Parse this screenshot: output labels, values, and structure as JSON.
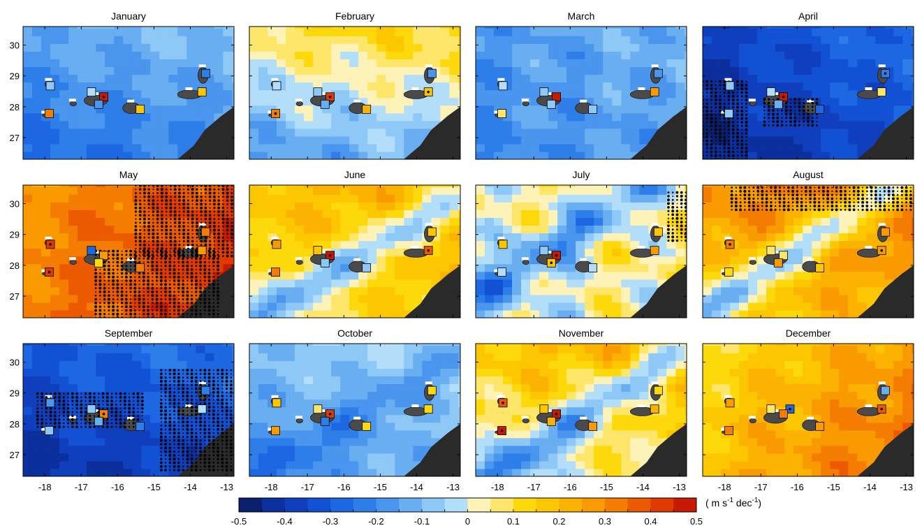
{
  "figure": {
    "panel_titles": [
      "January",
      "February",
      "March",
      "April",
      "May",
      "June",
      "July",
      "August",
      "September",
      "October",
      "November",
      "December"
    ],
    "colorbar_unit_main": "( m s",
    "colorbar_unit_sup1": "-1",
    "colorbar_unit_mid": " dec",
    "colorbar_unit_sup2": "-1",
    "colorbar_unit_end": ")"
  },
  "chart_data": {
    "type": "heatmap",
    "title": "",
    "xlim": [
      -18.6,
      -12.8
    ],
    "ylim": [
      26.3,
      30.6
    ],
    "x_ticks": [
      -18,
      -17,
      -16,
      -15,
      -14,
      -13
    ],
    "x_tick_labels": [
      "-18",
      "-17",
      "-16",
      "-15",
      "-14",
      "-13"
    ],
    "y_ticks": [
      27,
      28,
      29,
      30
    ],
    "y_tick_labels": [
      "27",
      "28",
      "29",
      "30"
    ],
    "colorbar": {
      "range": [
        -0.5,
        0.5
      ],
      "step": 0.05,
      "ticks": [
        -0.5,
        -0.4,
        -0.3,
        -0.2,
        -0.1,
        0,
        0.1,
        0.2,
        0.3,
        0.4,
        0.5
      ],
      "tick_labels": [
        "-0.5",
        "-0.4",
        "-0.3",
        "-0.2",
        "-0.1",
        "0",
        "0.1",
        "0.2",
        "0.3",
        "0.4",
        "0.5"
      ],
      "colors": [
        "#08206e",
        "#0b2f9c",
        "#0f3fbc",
        "#1351d4",
        "#1d67e3",
        "#2e7ee9",
        "#4a95ee",
        "#6aaef2",
        "#8dc8f6",
        "#b3def9",
        "#fdf3b8",
        "#fde66a",
        "#fdd80a",
        "#fcc700",
        "#fbb200",
        "#f89a00",
        "#f47c00",
        "#ec5a00",
        "#e03a00",
        "#c81a00"
      ]
    },
    "grid_cell_deg": 0.25,
    "months": [
      {
        "name": "January",
        "field": {
          "base": -0.18,
          "grad": [
            0.01,
            0.03
          ],
          "wave": 0.05,
          "bands": []
        },
        "stations": [
          {
            "x": -17.85,
            "y": 28.68,
            "v": -0.1
          },
          {
            "x": -17.88,
            "y": 27.78,
            "v": 0.3
          },
          {
            "x": -16.72,
            "y": 28.48,
            "v": -0.05
          },
          {
            "x": -16.38,
            "y": 28.32,
            "v": 0.45,
            "sig": true
          },
          {
            "x": -16.52,
            "y": 28.08,
            "v": -0.2
          },
          {
            "x": -15.38,
            "y": 27.92,
            "v": 0.15
          },
          {
            "x": -13.58,
            "y": 29.08,
            "v": -0.25
          },
          {
            "x": -13.68,
            "y": 28.48,
            "v": 0.18
          }
        ],
        "stipple": []
      },
      {
        "name": "February",
        "field": {
          "base": -0.02,
          "grad": [
            0.01,
            0.06
          ],
          "wave": 0.07,
          "bands": []
        },
        "stations": [
          {
            "x": -17.85,
            "y": 28.68,
            "v": -0.05
          },
          {
            "x": -17.88,
            "y": 27.78,
            "v": 0.3,
            "sig": true
          },
          {
            "x": -16.72,
            "y": 28.48,
            "v": -0.1
          },
          {
            "x": -16.38,
            "y": 28.32,
            "v": 0.42,
            "sig": true
          },
          {
            "x": -16.52,
            "y": 28.08,
            "v": -0.12
          },
          {
            "x": -15.38,
            "y": 27.92,
            "v": 0.2
          },
          {
            "x": -13.58,
            "y": 29.08,
            "v": -0.2
          },
          {
            "x": -13.68,
            "y": 28.48,
            "v": 0.15,
            "sig": true
          }
        ],
        "stipple": []
      },
      {
        "name": "March",
        "field": {
          "base": -0.16,
          "grad": [
            0.01,
            0.01
          ],
          "wave": 0.06,
          "bands": []
        },
        "stations": [
          {
            "x": -17.85,
            "y": 28.68,
            "v": -0.05
          },
          {
            "x": -17.88,
            "y": 27.78,
            "v": 0.08
          },
          {
            "x": -16.72,
            "y": 28.48,
            "v": -0.08
          },
          {
            "x": -16.38,
            "y": 28.32,
            "v": 0.45
          },
          {
            "x": -16.52,
            "y": 28.08,
            "v": -0.1
          },
          {
            "x": -15.38,
            "y": 27.92,
            "v": -0.06
          },
          {
            "x": -13.58,
            "y": 29.08,
            "v": -0.18
          },
          {
            "x": -13.68,
            "y": 28.48,
            "v": 0.28
          }
        ],
        "stipple": []
      },
      {
        "name": "April",
        "field": {
          "base": -0.36,
          "grad": [
            0.02,
            0.02
          ],
          "wave": 0.05,
          "bands": []
        },
        "stations": [
          {
            "x": -17.85,
            "y": 28.68,
            "v": -0.08
          },
          {
            "x": -17.88,
            "y": 27.78,
            "v": -0.1
          },
          {
            "x": -16.72,
            "y": 28.48,
            "v": -0.05
          },
          {
            "x": -16.38,
            "y": 28.32,
            "v": 0.45,
            "sig": true
          },
          {
            "x": -16.52,
            "y": 28.08,
            "v": -0.15
          },
          {
            "x": -15.38,
            "y": 27.92,
            "v": -0.3
          },
          {
            "x": -13.58,
            "y": 29.08,
            "v": -0.25,
            "sig": true
          },
          {
            "x": -13.68,
            "y": 28.48,
            "v": 0.05
          }
        ],
        "stipple": [
          {
            "x0": -18.6,
            "x1": -17.3,
            "y0": 26.3,
            "y1": 28.9
          },
          {
            "x0": -16.9,
            "x1": -15.4,
            "y0": 27.4,
            "y1": 28.3
          }
        ]
      },
      {
        "name": "May",
        "field": {
          "base": 0.36,
          "grad": [
            0.025,
            -0.01
          ],
          "wave": 0.05,
          "bands": []
        },
        "stations": [
          {
            "x": -17.85,
            "y": 28.68,
            "v": 0.4,
            "sig": true
          },
          {
            "x": -17.88,
            "y": 27.78,
            "v": 0.4,
            "sig": true
          },
          {
            "x": -16.72,
            "y": 28.48,
            "v": -0.3
          },
          {
            "x": -16.38,
            "y": 28.32,
            "v": 0.25
          },
          {
            "x": -16.52,
            "y": 28.08,
            "v": 0.1
          },
          {
            "x": -15.38,
            "y": 27.92,
            "v": 0.3
          },
          {
            "x": -13.58,
            "y": 29.08,
            "v": 0.3
          },
          {
            "x": -13.68,
            "y": 28.48,
            "v": 0.25
          }
        ],
        "stipple": [
          {
            "x0": -16.6,
            "x1": -13.2,
            "y0": 26.3,
            "y1": 28.5
          },
          {
            "x0": -15.5,
            "x1": -12.8,
            "y0": 28.3,
            "y1": 30.6
          }
        ]
      },
      {
        "name": "June",
        "field": {
          "base": 0.16,
          "grad": [
            0.01,
            0.02
          ],
          "wave": 0.06,
          "bands": [
            {
              "dir": [
                0.7,
                -1
              ],
              "off": 0,
              "amp": -0.25
            }
          ]
        },
        "stations": [
          {
            "x": -17.85,
            "y": 28.68,
            "v": 0.25
          },
          {
            "x": -17.88,
            "y": 27.78,
            "v": 0.3
          },
          {
            "x": -16.72,
            "y": 28.48,
            "v": 0.15
          },
          {
            "x": -16.38,
            "y": 28.32,
            "v": 0.45,
            "sig": true
          },
          {
            "x": -16.52,
            "y": 28.08,
            "v": -0.1
          },
          {
            "x": -15.38,
            "y": 27.92,
            "v": -0.08
          },
          {
            "x": -13.58,
            "y": 29.08,
            "v": 0.15
          },
          {
            "x": -13.68,
            "y": 28.48,
            "v": 0.35,
            "sig": true
          }
        ],
        "stipple": []
      },
      {
        "name": "July",
        "field": {
          "base": 0.03,
          "grad": [
            0.01,
            0.01
          ],
          "wave": 0.12,
          "bands": [
            {
              "dir": [
                0.8,
                -1
              ],
              "off": 1,
              "amp": -0.22
            }
          ]
        },
        "stations": [
          {
            "x": -17.85,
            "y": 28.68,
            "v": 0.15
          },
          {
            "x": -17.88,
            "y": 27.78,
            "v": -0.05
          },
          {
            "x": -16.72,
            "y": 28.48,
            "v": -0.1
          },
          {
            "x": -16.38,
            "y": 28.32,
            "v": 0.45,
            "sig": true
          },
          {
            "x": -16.52,
            "y": 28.08,
            "v": 0.18,
            "sig": true
          },
          {
            "x": -15.38,
            "y": 27.92,
            "v": -0.05
          },
          {
            "x": -13.58,
            "y": 29.08,
            "v": 0.15
          },
          {
            "x": -13.68,
            "y": 28.48,
            "v": 0.25
          }
        ],
        "stipple": [
          {
            "x0": -13.3,
            "x1": -12.8,
            "y0": 28.8,
            "y1": 30.4
          }
        ]
      },
      {
        "name": "August",
        "field": {
          "base": 0.25,
          "grad": [
            0.01,
            0.03
          ],
          "wave": 0.06,
          "bands": [
            {
              "dir": [
                0.8,
                -1
              ],
              "off": 0.5,
              "amp": -0.3
            }
          ]
        },
        "stations": [
          {
            "x": -17.85,
            "y": 28.68,
            "v": 0.3,
            "sig": true
          },
          {
            "x": -17.88,
            "y": 27.78,
            "v": 0.1
          },
          {
            "x": -16.72,
            "y": 28.48,
            "v": 0.08
          },
          {
            "x": -16.38,
            "y": 28.32,
            "v": 0.05
          },
          {
            "x": -16.52,
            "y": 28.08,
            "v": 0.25
          },
          {
            "x": -15.38,
            "y": 27.92,
            "v": 0.15
          },
          {
            "x": -13.58,
            "y": 29.08,
            "v": 0.25
          },
          {
            "x": -13.68,
            "y": 28.48,
            "v": 0.25,
            "sig": true
          }
        ],
        "stipple": [
          {
            "x0": -17.8,
            "x1": -12.8,
            "y0": 29.8,
            "y1": 30.6
          }
        ]
      },
      {
        "name": "September",
        "field": {
          "base": -0.34,
          "grad": [
            0.01,
            0.03
          ],
          "wave": 0.05,
          "bands": []
        },
        "stations": [
          {
            "x": -17.85,
            "y": 28.68,
            "v": -0.2
          },
          {
            "x": -17.88,
            "y": 27.78,
            "v": -0.08
          },
          {
            "x": -16.72,
            "y": 28.48,
            "v": -0.1
          },
          {
            "x": -16.38,
            "y": 28.32,
            "v": 0.3,
            "sig": true
          },
          {
            "x": -16.52,
            "y": 28.08,
            "v": -0.15
          },
          {
            "x": -15.38,
            "y": 27.92,
            "v": -0.25
          },
          {
            "x": -13.58,
            "y": 29.08,
            "v": -0.25
          },
          {
            "x": -13.68,
            "y": 28.48,
            "v": -0.05
          }
        ],
        "stipple": [
          {
            "x0": -18.2,
            "x1": -15.2,
            "y0": 27.9,
            "y1": 29.0
          },
          {
            "x0": -14.8,
            "x1": -12.8,
            "y0": 26.5,
            "y1": 29.8
          }
        ]
      },
      {
        "name": "October",
        "field": {
          "base": -0.11,
          "grad": [
            0.01,
            0.02
          ],
          "wave": 0.05,
          "bands": [
            {
              "dir": [
                0.7,
                -1
              ],
              "off": 0,
              "amp": -0.1
            }
          ]
        },
        "stations": [
          {
            "x": -17.85,
            "y": 28.68,
            "v": 0.15
          },
          {
            "x": -17.88,
            "y": 27.78,
            "v": 0.25
          },
          {
            "x": -16.72,
            "y": 28.48,
            "v": 0.05
          },
          {
            "x": -16.38,
            "y": 28.32,
            "v": 0.4,
            "sig": true
          },
          {
            "x": -16.52,
            "y": 28.08,
            "v": -0.25
          },
          {
            "x": -15.38,
            "y": 27.92,
            "v": 0.1
          },
          {
            "x": -13.58,
            "y": 29.08,
            "v": 0.1
          },
          {
            "x": -13.68,
            "y": 28.48,
            "v": 0.12
          }
        ],
        "stipple": []
      },
      {
        "name": "November",
        "field": {
          "base": 0.11,
          "grad": [
            0.01,
            0.04
          ],
          "wave": 0.08,
          "bands": [
            {
              "dir": [
                0.8,
                -1
              ],
              "off": 0,
              "amp": -0.25
            }
          ]
        },
        "stations": [
          {
            "x": -17.85,
            "y": 28.68,
            "v": 0.35,
            "sig": true
          },
          {
            "x": -17.88,
            "y": 27.78,
            "v": 0.45,
            "sig": true
          },
          {
            "x": -16.72,
            "y": 28.48,
            "v": 0.15
          },
          {
            "x": -16.38,
            "y": 28.32,
            "v": 0.45,
            "sig": true
          },
          {
            "x": -16.52,
            "y": 28.08,
            "v": 0.2
          },
          {
            "x": -15.38,
            "y": 27.92,
            "v": 0.28
          },
          {
            "x": -13.58,
            "y": 29.08,
            "v": 0.1
          },
          {
            "x": -13.68,
            "y": 28.48,
            "v": 0.2
          }
        ],
        "stipple": []
      },
      {
        "name": "December",
        "field": {
          "base": 0.23,
          "grad": [
            0.03,
            -0.02
          ],
          "wave": 0.06,
          "bands": []
        },
        "stations": [
          {
            "x": -17.85,
            "y": 28.68,
            "v": 0.25
          },
          {
            "x": -17.88,
            "y": 27.78,
            "v": 0.3
          },
          {
            "x": -16.72,
            "y": 28.48,
            "v": 0.08
          },
          {
            "x": -16.2,
            "y": 28.48,
            "v": -0.3,
            "sig": true
          },
          {
            "x": -16.38,
            "y": 28.32,
            "v": 0.3
          },
          {
            "x": -15.38,
            "y": 27.92,
            "v": 0.25
          },
          {
            "x": -13.58,
            "y": 29.08,
            "v": -0.15
          },
          {
            "x": -13.68,
            "y": 28.48,
            "v": 0.35,
            "sig": true
          }
        ],
        "stipple": []
      }
    ],
    "islands": [
      {
        "name": "",
        "x": -17.88,
        "y": 28.73,
        "rx": 0.12,
        "ry": 0.11
      },
      {
        "name": "",
        "x": -17.22,
        "y": 28.1,
        "rx": 0.09,
        "ry": 0.07
      },
      {
        "name": "",
        "x": -17.98,
        "y": 27.73,
        "rx": 0.09,
        "ry": 0.05
      },
      {
        "name": "",
        "x": -16.6,
        "y": 28.2,
        "rx": 0.32,
        "ry": 0.18
      },
      {
        "name": "",
        "x": -15.62,
        "y": 27.96,
        "rx": 0.24,
        "ry": 0.18
      },
      {
        "name": "",
        "x": -14.02,
        "y": 28.4,
        "rx": 0.33,
        "ry": 0.14
      },
      {
        "name": "",
        "x": -13.65,
        "y": 29.02,
        "rx": 0.14,
        "ry": 0.26
      }
    ],
    "coastline": [
      [
        -14.35,
        26.3
      ],
      [
        -13.9,
        26.75
      ],
      [
        -13.6,
        27.25
      ],
      [
        -13.15,
        27.7
      ],
      [
        -12.8,
        28.0
      ],
      [
        -12.8,
        26.3
      ]
    ]
  }
}
